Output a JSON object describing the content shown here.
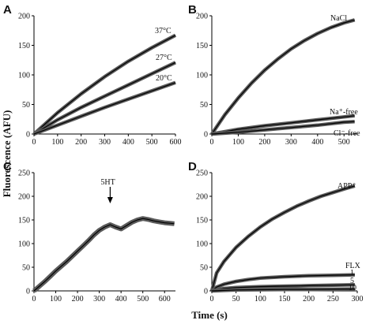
{
  "figure": {
    "shared_ylabel": "Fluorescence (AFU)",
    "shared_xlabel": "Time (s)"
  },
  "chart_data": [
    {
      "panel": "A",
      "type": "line",
      "xlim": [
        0,
        600
      ],
      "ylim": [
        0,
        200
      ],
      "xticks": [
        0,
        100,
        200,
        300,
        400,
        500,
        600
      ],
      "yticks": [
        0,
        50,
        100,
        150,
        200
      ],
      "series": [
        {
          "name": "37°C",
          "x": [
            0,
            100,
            200,
            300,
            400,
            500,
            600
          ],
          "y": [
            0,
            36,
            68,
            97,
            123,
            146,
            167
          ]
        },
        {
          "name": "27°C",
          "x": [
            0,
            100,
            200,
            300,
            400,
            500,
            600
          ],
          "y": [
            0,
            24,
            45,
            64,
            83,
            102,
            121
          ]
        },
        {
          "name": "20°C",
          "x": [
            0,
            100,
            200,
            300,
            400,
            500,
            600
          ],
          "y": [
            0,
            15,
            30,
            45,
            59,
            73,
            87
          ]
        }
      ]
    },
    {
      "panel": "B",
      "type": "line",
      "xlim": [
        0,
        550
      ],
      "ylim": [
        0,
        200
      ],
      "xticks": [
        0,
        100,
        200,
        300,
        400,
        500
      ],
      "yticks": [
        0,
        50,
        100,
        150,
        200
      ],
      "series": [
        {
          "name": "NaCl",
          "x": [
            0,
            50,
            100,
            150,
            200,
            250,
            300,
            350,
            400,
            450,
            500,
            540
          ],
          "y": [
            0,
            33,
            61,
            86,
            108,
            127,
            144,
            158,
            170,
            180,
            188,
            193
          ]
        },
        {
          "name": "Na⁺-free",
          "x": [
            0,
            100,
            200,
            300,
            400,
            500,
            540
          ],
          "y": [
            0,
            8,
            14,
            19,
            24,
            29,
            31
          ]
        },
        {
          "name": "Cl⁻-free",
          "x": [
            0,
            100,
            200,
            300,
            400,
            500,
            540
          ],
          "y": [
            0,
            3,
            7,
            11,
            15,
            20,
            21
          ]
        }
      ]
    },
    {
      "panel": "C",
      "type": "line",
      "xlim": [
        0,
        650
      ],
      "ylim": [
        0,
        250
      ],
      "xticks": [
        0,
        100,
        200,
        300,
        400,
        500,
        600
      ],
      "yticks": [
        0,
        50,
        100,
        150,
        200,
        250
      ],
      "annotation": {
        "label": "5HT",
        "x": 350
      },
      "series": [
        {
          "name": "",
          "x": [
            0,
            25,
            50,
            75,
            100,
            125,
            150,
            175,
            200,
            225,
            250,
            275,
            300,
            325,
            350,
            375,
            400,
            425,
            450,
            475,
            500,
            525,
            550,
            575,
            600,
            625,
            645
          ],
          "y": [
            0,
            10,
            20,
            31,
            42,
            52,
            62,
            73,
            84,
            95,
            106,
            118,
            128,
            135,
            140,
            135,
            131,
            138,
            145,
            150,
            153,
            151,
            148,
            146,
            144,
            143,
            142
          ]
        }
      ]
    },
    {
      "panel": "D",
      "type": "line",
      "xlim": [
        0,
        300
      ],
      "ylim": [
        0,
        250
      ],
      "xticks": [
        0,
        50,
        100,
        150,
        200,
        250,
        300
      ],
      "yticks": [
        0,
        50,
        100,
        150,
        200,
        250
      ],
      "labels": [
        {
          "text": "FLX",
          "near": "above-series"
        }
      ],
      "series": [
        {
          "name": "APP⁺",
          "x": [
            0,
            10,
            25,
            50,
            75,
            100,
            125,
            150,
            175,
            200,
            225,
            250,
            275,
            295
          ],
          "y": [
            0,
            38,
            62,
            92,
            115,
            135,
            152,
            166,
            179,
            190,
            200,
            208,
            216,
            222
          ]
        },
        {
          "name": "1",
          "x": [
            0,
            10,
            25,
            50,
            75,
            100,
            150,
            200,
            250,
            295
          ],
          "y": [
            0,
            8,
            14,
            20,
            24,
            27,
            30,
            32,
            33,
            34
          ]
        },
        {
          "name": "5",
          "x": [
            0,
            25,
            50,
            100,
            150,
            200,
            250,
            295
          ],
          "y": [
            0,
            5,
            7,
            9,
            10,
            11,
            12,
            13
          ]
        },
        {
          "name": "10",
          "x": [
            0,
            50,
            100,
            150,
            200,
            250,
            295
          ],
          "y": [
            0,
            2,
            2.5,
            3,
            3,
            3.5,
            4
          ]
        }
      ]
    }
  ]
}
